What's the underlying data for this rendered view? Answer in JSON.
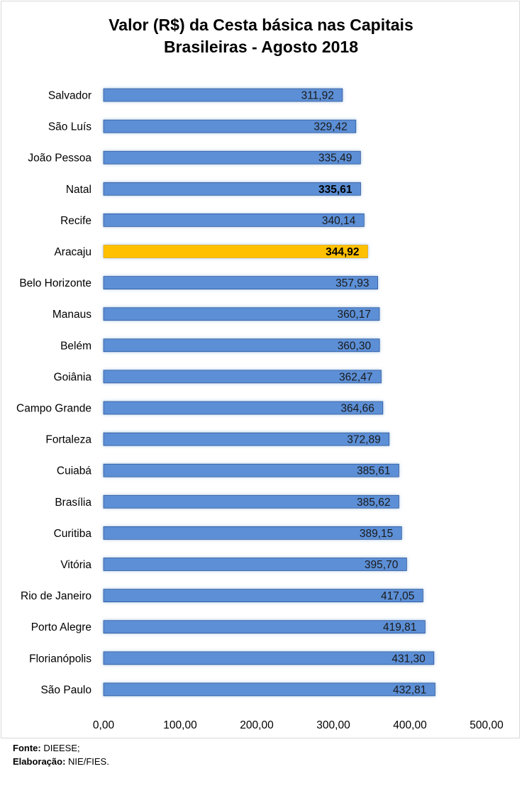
{
  "chart_data": {
    "type": "bar",
    "orientation": "horizontal",
    "title_line1": "Valor (R$) da Cesta básica nas Capitais",
    "title_line2": "Brasileiras - Agosto 2018",
    "categories": [
      "Salvador",
      "São Luís",
      "João Pessoa",
      "Natal",
      "Recife",
      "Aracaju",
      "Belo Horizonte",
      "Manaus",
      "Belém",
      "Goiânia",
      "Campo Grande",
      "Fortaleza",
      "Cuiabá",
      "Brasília",
      "Curitiba",
      "Vitória",
      "Rio de Janeiro",
      "Porto Alegre",
      "Florianópolis",
      "São Paulo"
    ],
    "values": [
      311.92,
      329.42,
      335.49,
      335.61,
      340.14,
      344.92,
      357.93,
      360.17,
      360.3,
      362.47,
      364.66,
      372.89,
      385.61,
      385.62,
      389.15,
      395.7,
      417.05,
      419.81,
      431.3,
      432.81
    ],
    "value_labels": [
      "311,92",
      "329,42",
      "335,49",
      "335,61",
      "340,14",
      "344,92",
      "357,93",
      "360,17",
      "360,30",
      "362,47",
      "364,66",
      "372,89",
      "385,61",
      "385,62",
      "389,15",
      "395,70",
      "417,05",
      "419,81",
      "431,30",
      "432,81"
    ],
    "bold_labels": [
      "Natal",
      "Aracaju"
    ],
    "highlight": "Aracaju",
    "xlim": [
      0,
      500
    ],
    "xticks": [
      0,
      100,
      200,
      300,
      400,
      500
    ],
    "xtick_labels": [
      "0,00",
      "100,00",
      "200,00",
      "300,00",
      "400,00",
      "500,00"
    ],
    "colors": {
      "bar": "#5b8fd6",
      "bar_edge": "#2f5597",
      "highlight": "#ffc000",
      "glow": "#bdd7ee"
    },
    "grid": false
  },
  "footer": {
    "source_label": "Fonte:",
    "source_value": " DIEESE;",
    "elab_label": "Elaboração:",
    "elab_value": " NIE/FIES."
  }
}
